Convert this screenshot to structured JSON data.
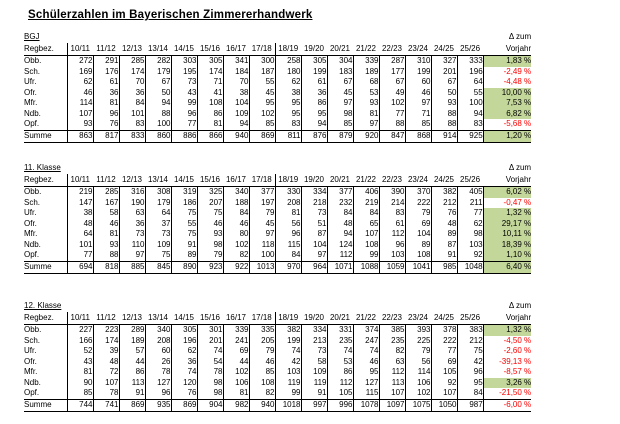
{
  "title": "Schülerzahlen im Bayerischen Zimmererhandwerk",
  "columns": {
    "region_header": "Regbez.",
    "years": [
      "10/11",
      "11/12",
      "12/13",
      "13/14",
      "14/15",
      "15/16",
      "16/17",
      "17/18",
      "18/19",
      "19/20",
      "20/21",
      "21/22",
      "22/23",
      "23/24",
      "24/25",
      "25/26"
    ],
    "delta_line1": "Δ zum",
    "delta_line2": "Vorjahr"
  },
  "colors": {
    "positive_bg": "#c4d79b",
    "negative_text": "#ff0000",
    "border": "#000000"
  },
  "tables": [
    {
      "label": "BGJ",
      "rows": [
        {
          "name": "Obb.",
          "values": [
            272,
            291,
            285,
            282,
            303,
            305,
            341,
            300,
            258,
            305,
            304,
            339,
            287,
            310,
            327,
            333
          ],
          "delta": "1,83 %",
          "positive": true
        },
        {
          "name": "Sch.",
          "values": [
            169,
            176,
            174,
            179,
            195,
            174,
            184,
            187,
            180,
            199,
            183,
            189,
            177,
            199,
            201,
            196
          ],
          "delta": "-2,49 %",
          "positive": false
        },
        {
          "name": "Ufr.",
          "values": [
            62,
            61,
            70,
            67,
            73,
            71,
            70,
            55,
            62,
            61,
            67,
            68,
            67,
            60,
            67,
            64
          ],
          "delta": "-4,48 %",
          "positive": false
        },
        {
          "name": "Ofr.",
          "values": [
            46,
            36,
            36,
            50,
            43,
            41,
            38,
            45,
            38,
            36,
            45,
            53,
            49,
            46,
            50,
            55
          ],
          "delta": "10,00 %",
          "positive": true
        },
        {
          "name": "Mfr.",
          "values": [
            114,
            81,
            84,
            94,
            99,
            108,
            104,
            95,
            95,
            86,
            97,
            93,
            102,
            97,
            93,
            100
          ],
          "delta": "7,53 %",
          "positive": true
        },
        {
          "name": "Ndb.",
          "values": [
            107,
            96,
            101,
            88,
            96,
            86,
            109,
            102,
            95,
            95,
            98,
            81,
            77,
            71,
            88,
            94
          ],
          "delta": "6,82 %",
          "positive": true
        },
        {
          "name": "Opf.",
          "values": [
            93,
            76,
            83,
            100,
            77,
            81,
            94,
            85,
            83,
            94,
            85,
            97,
            88,
            85,
            88,
            83
          ],
          "delta": "-5,68 %",
          "positive": false
        }
      ],
      "summe": {
        "name": "Summe",
        "values": [
          863,
          817,
          833,
          860,
          886,
          866,
          940,
          869,
          811,
          876,
          879,
          920,
          847,
          868,
          914,
          925
        ],
        "delta": "1,20 %",
        "positive": true
      }
    },
    {
      "label": "11. Klasse",
      "rows": [
        {
          "name": "Obb.",
          "values": [
            219,
            285,
            316,
            308,
            319,
            325,
            340,
            377,
            330,
            334,
            377,
            406,
            390,
            370,
            382,
            405
          ],
          "delta": "6,02 %",
          "positive": true
        },
        {
          "name": "Sch.",
          "values": [
            147,
            167,
            190,
            179,
            186,
            207,
            188,
            197,
            208,
            218,
            232,
            219,
            214,
            222,
            212,
            211
          ],
          "delta": "-0,47 %",
          "positive": false
        },
        {
          "name": "Ufr.",
          "values": [
            38,
            58,
            63,
            64,
            75,
            75,
            84,
            79,
            81,
            73,
            84,
            84,
            83,
            79,
            76,
            77
          ],
          "delta": "1,32 %",
          "positive": true
        },
        {
          "name": "Ofr.",
          "values": [
            48,
            46,
            36,
            37,
            55,
            46,
            46,
            45,
            56,
            51,
            48,
            65,
            61,
            69,
            48,
            62
          ],
          "delta": "29,17 %",
          "positive": true
        },
        {
          "name": "Mfr.",
          "values": [
            64,
            81,
            73,
            73,
            75,
            93,
            80,
            97,
            96,
            87,
            94,
            107,
            112,
            104,
            89,
            98
          ],
          "delta": "10,11 %",
          "positive": true
        },
        {
          "name": "Ndb.",
          "values": [
            101,
            93,
            110,
            109,
            91,
            98,
            102,
            118,
            115,
            104,
            124,
            108,
            96,
            89,
            87,
            103
          ],
          "delta": "18,39 %",
          "positive": true
        },
        {
          "name": "Opf.",
          "values": [
            77,
            88,
            97,
            75,
            89,
            79,
            82,
            100,
            84,
            97,
            112,
            99,
            103,
            108,
            91,
            92
          ],
          "delta": "1,10 %",
          "positive": true
        }
      ],
      "summe": {
        "name": "Summe",
        "values": [
          694,
          818,
          885,
          845,
          890,
          923,
          922,
          1013,
          970,
          964,
          1071,
          1088,
          1059,
          1041,
          985,
          1048
        ],
        "delta": "6,40 %",
        "positive": true
      }
    },
    {
      "label": "12. Klasse",
      "rows": [
        {
          "name": "Obb.",
          "values": [
            227,
            223,
            289,
            340,
            305,
            301,
            339,
            335,
            382,
            334,
            331,
            374,
            385,
            393,
            378,
            383
          ],
          "delta": "1,32 %",
          "positive": true
        },
        {
          "name": "Sch.",
          "values": [
            166,
            174,
            189,
            208,
            196,
            201,
            241,
            205,
            199,
            213,
            235,
            247,
            235,
            225,
            222,
            212
          ],
          "delta": "-4,50 %",
          "positive": false
        },
        {
          "name": "Ufr.",
          "values": [
            52,
            39,
            57,
            60,
            62,
            74,
            69,
            79,
            74,
            73,
            74,
            74,
            82,
            79,
            77,
            75
          ],
          "delta": "-2,60 %",
          "positive": false
        },
        {
          "name": "Ofr.",
          "values": [
            43,
            48,
            44,
            26,
            36,
            54,
            44,
            46,
            42,
            58,
            53,
            46,
            63,
            56,
            69,
            42
          ],
          "delta": "-39,13 %",
          "positive": false
        },
        {
          "name": "Mfr.",
          "values": [
            81,
            72,
            86,
            78,
            74,
            78,
            102,
            85,
            103,
            109,
            86,
            95,
            112,
            114,
            105,
            96
          ],
          "delta": "-8,57 %",
          "positive": false
        },
        {
          "name": "Ndb.",
          "values": [
            90,
            107,
            113,
            127,
            120,
            98,
            106,
            108,
            119,
            119,
            112,
            127,
            113,
            106,
            92,
            95
          ],
          "delta": "3,26 %",
          "positive": true
        },
        {
          "name": "Opf.",
          "values": [
            85,
            78,
            91,
            96,
            76,
            98,
            81,
            82,
            99,
            91,
            105,
            115,
            107,
            102,
            107,
            84
          ],
          "delta": "-21,50 %",
          "positive": false
        }
      ],
      "summe": {
        "name": "Summe",
        "values": [
          744,
          741,
          869,
          935,
          869,
          904,
          982,
          940,
          1018,
          997,
          996,
          1078,
          1097,
          1075,
          1050,
          987
        ],
        "delta": "-6,00 %",
        "positive": false
      }
    }
  ]
}
